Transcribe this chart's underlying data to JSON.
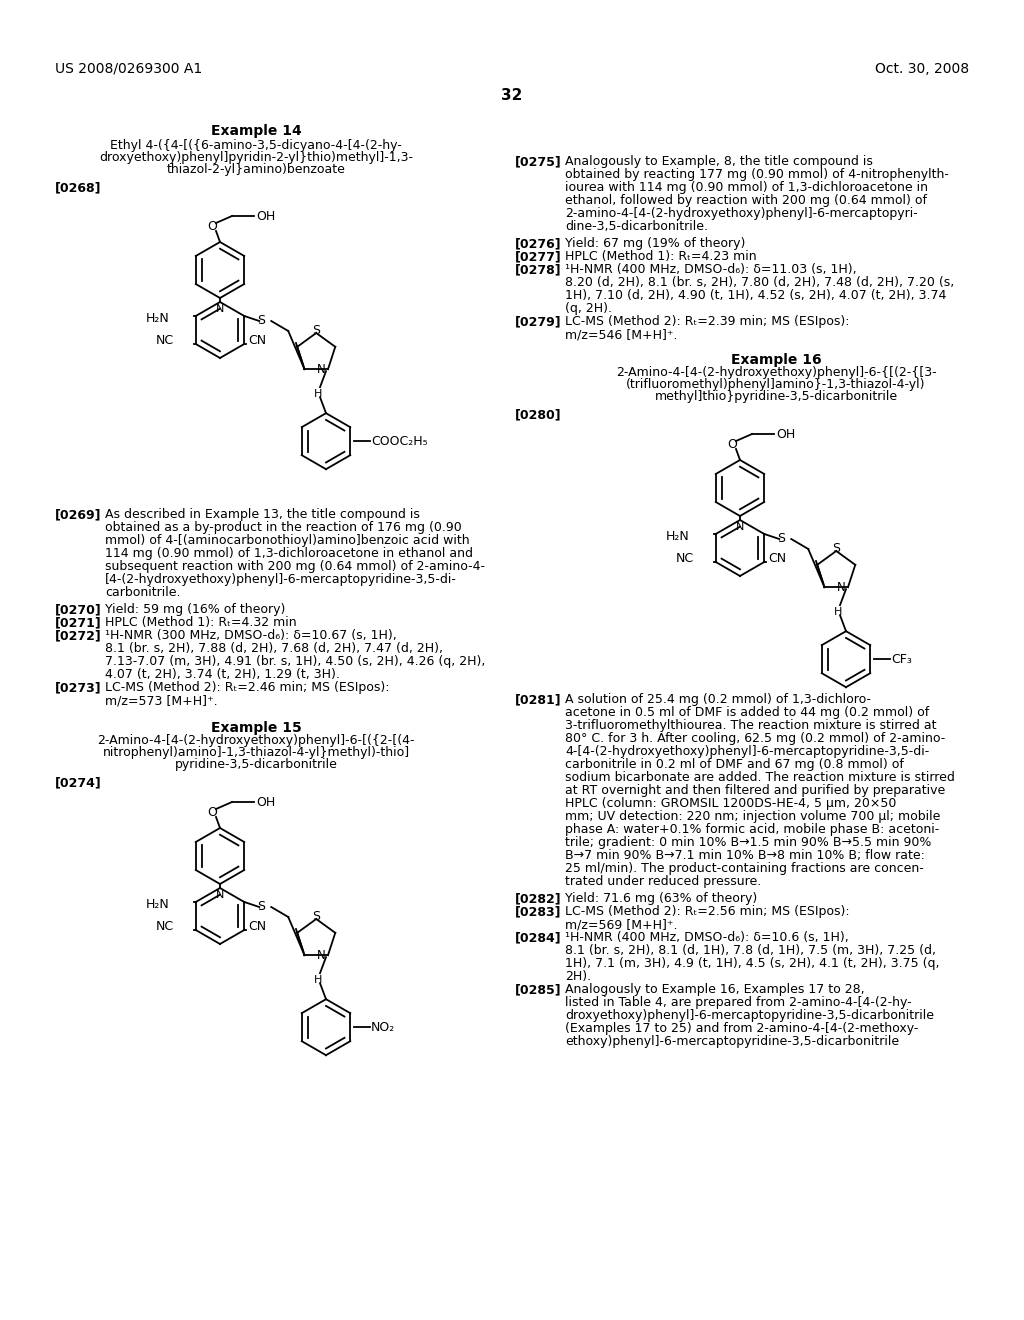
{
  "background_color": "#ffffff",
  "header_left": "US 2008/0269300 A1",
  "header_right": "Oct. 30, 2008",
  "page_number": "32"
}
